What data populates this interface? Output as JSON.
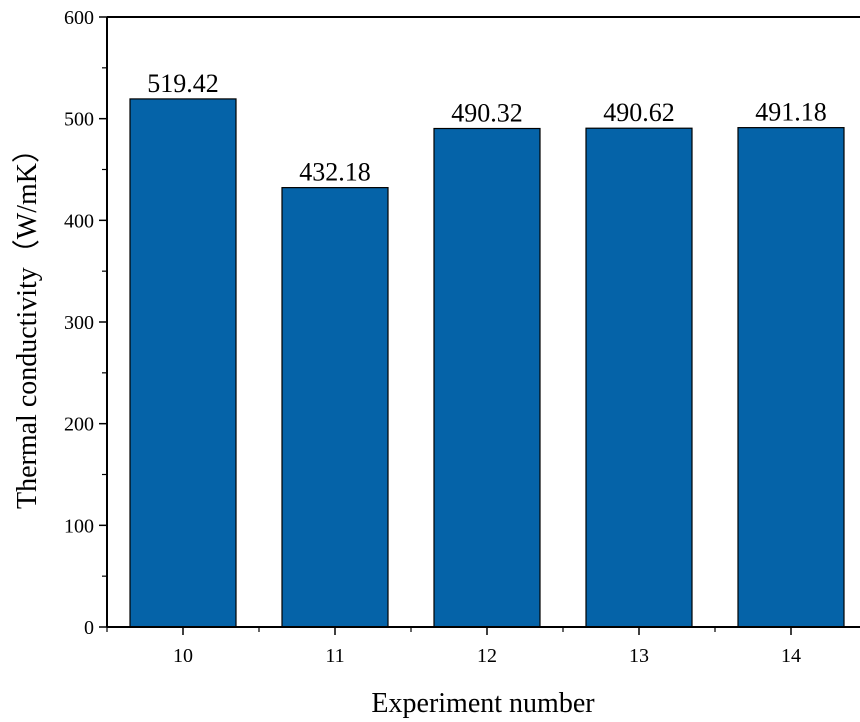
{
  "chart_data": {
    "type": "bar",
    "title": "",
    "xlabel": "Experiment number",
    "ylabel": "Thermal conductivity（W/mK）",
    "categories": [
      "10",
      "11",
      "12",
      "13",
      "14"
    ],
    "values": [
      519.42,
      432.18,
      490.32,
      490.62,
      491.18
    ],
    "data_labels": [
      "519.42",
      "432.18",
      "490.32",
      "490.62",
      "491.18"
    ],
    "ylim": [
      0,
      600
    ],
    "yticks": [
      0,
      100,
      200,
      300,
      400,
      500,
      600
    ],
    "ytick_labels": [
      "0",
      "100",
      "200",
      "300",
      "400",
      "500",
      "600"
    ],
    "bar_color": "#0563a8",
    "grid": false,
    "legend": "none"
  }
}
